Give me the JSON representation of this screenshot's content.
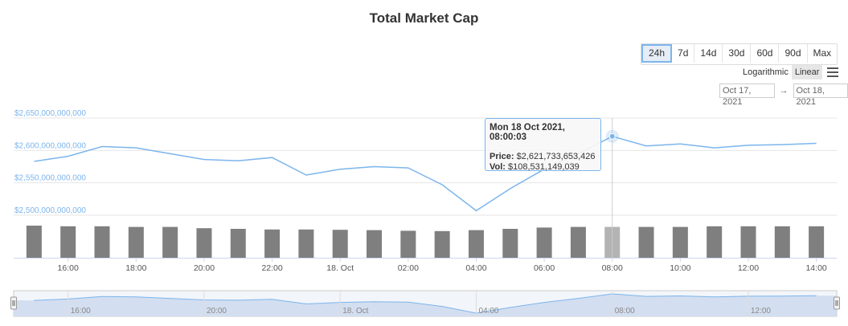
{
  "title": "Total Market Cap",
  "ranges": [
    "24h",
    "7d",
    "14d",
    "30d",
    "60d",
    "90d",
    "Max"
  ],
  "active_range": "24h",
  "scale": {
    "logarithmic": "Logarithmic",
    "linear": "Linear",
    "active": "Linear"
  },
  "date_range": {
    "from": "Oct 17, 2021",
    "arrow": "→",
    "to": "Oct 18, 2021"
  },
  "tooltip": {
    "date": "Mon 18 Oct 2021, 08:00:03",
    "price_label": "Price:",
    "price_value": "$2,621,733,653,426",
    "vol_label": "Vol:",
    "vol_value": "$108,531,149,039"
  },
  "colors": {
    "line": "#7cb5ec",
    "bar": "#7f7f7f",
    "bar_highlight": "#b3b3b3",
    "navigator_fill": "#cfdcee"
  },
  "chart_data": {
    "type": "line",
    "title": "Total Market Cap",
    "y_tick_labels": [
      "$2,650,000,000,000",
      "$2,600,000,000,000",
      "$2,550,000,000,000",
      "$2,500,000,000,000"
    ],
    "y_ticks": [
      2650000000000,
      2600000000000,
      2550000000000,
      2500000000000
    ],
    "ylim": [
      2500000000000,
      2650000000000
    ],
    "x_tick_labels": [
      "16:00",
      "18:00",
      "20:00",
      "22:00",
      "18. Oct",
      "02:00",
      "04:00",
      "06:00",
      "08:00",
      "10:00",
      "12:00",
      "14:00"
    ],
    "x_tick_hours": [
      16,
      18,
      20,
      22,
      24,
      26,
      28,
      30,
      32,
      34,
      36,
      38
    ],
    "xlim_hours": [
      14.4,
      38.6
    ],
    "grid": true,
    "series": [
      {
        "x_hours": [
          15,
          16,
          17,
          18,
          19,
          20,
          21,
          22,
          23,
          24,
          25,
          26,
          27,
          28,
          29,
          30,
          31,
          32,
          33,
          34,
          35,
          36,
          37,
          38
        ],
        "values": [
          2583000000000,
          2591000000000,
          2606000000000,
          2604000000000,
          2595000000000,
          2586000000000,
          2584000000000,
          2589000000000,
          2562000000000,
          2571000000000,
          2575000000000,
          2573000000000,
          2547000000000,
          2507000000000,
          2541000000000,
          2571000000000,
          2595000000000,
          2621733653426,
          2607000000000,
          2610000000000,
          2604000000000,
          2608000000000,
          2609000000000,
          2611000000000
        ]
      },
      {
        "name": "Vol",
        "type": "bar",
        "x_hours": [
          15,
          16,
          17,
          18,
          19,
          20,
          21,
          22,
          23,
          24,
          25,
          26,
          27,
          28,
          29,
          30,
          31,
          32,
          33,
          34,
          35,
          36,
          37,
          38
        ],
        "values": [
          1.0,
          0.98,
          0.98,
          0.96,
          0.96,
          0.92,
          0.9,
          0.88,
          0.88,
          0.87,
          0.86,
          0.84,
          0.83,
          0.86,
          0.9,
          0.94,
          0.96,
          0.96,
          0.96,
          0.96,
          0.98,
          0.98,
          0.98,
          0.98
        ]
      }
    ],
    "highlight_hour": 32,
    "navigator_tick_labels": [
      "16:00",
      "20:00",
      "18. Oct",
      "04:00",
      "08:00",
      "12:00"
    ],
    "navigator_tick_hours": [
      16,
      20,
      24,
      28,
      32,
      36
    ]
  }
}
